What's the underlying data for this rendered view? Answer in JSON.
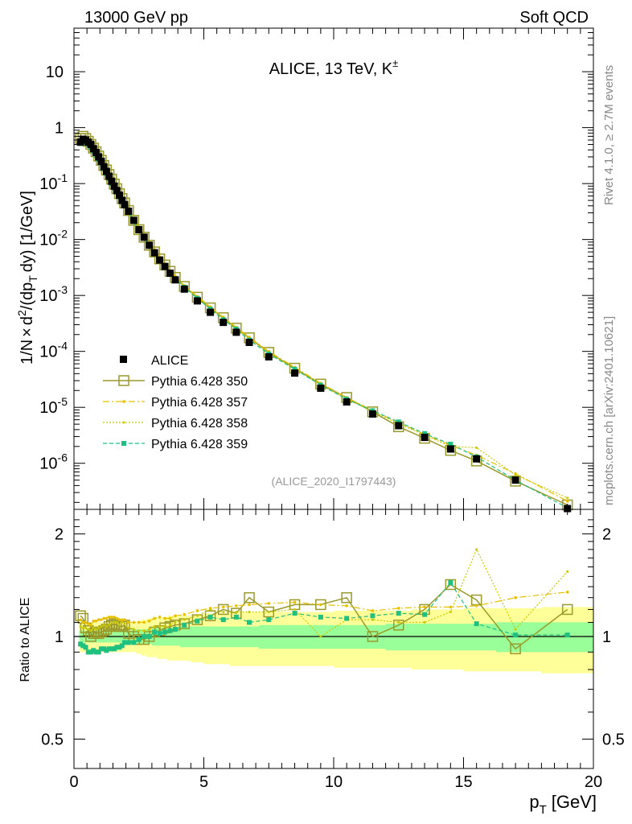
{
  "header": {
    "left": "13000 GeV pp",
    "right": "Soft QCD"
  },
  "side_labels": {
    "rivet": "Rivet 4.1.0, ≥ 2.7M events",
    "mcplots": "mcplots.cern.ch [arXiv:2401.10621]"
  },
  "colors": {
    "alice": "#000000",
    "p350": "#9a9a2a",
    "p357": "#e8c000",
    "p358": "#c8c800",
    "p359": "#20c080",
    "band_yellow": "#ffff99",
    "band_green": "#99ff99"
  },
  "chart_data": [
    {
      "type": "line",
      "title": "ALICE, 13 TeV, K±",
      "title_main": "ALICE, 13 TeV, K",
      "title_sup": "±",
      "ylabel": "1/N × d²/(dp_T dy) [1/GeV]",
      "ylabel_parts": [
        "1/N",
        "×",
        "d",
        "2",
        "/(dp",
        "T",
        "dy) [1/GeV]"
      ],
      "xlim": [
        0,
        20
      ],
      "ylim": [
        1.5e-07,
        60
      ],
      "yscale": "log",
      "yticks": [
        {
          "value": 1e-06,
          "base": "10",
          "exp": "-6"
        },
        {
          "value": 1e-05,
          "base": "10",
          "exp": "-5"
        },
        {
          "value": 0.0001,
          "base": "10",
          "exp": "-4"
        },
        {
          "value": 0.001,
          "base": "10",
          "exp": "-3"
        },
        {
          "value": 0.01,
          "base": "10",
          "exp": "-2"
        },
        {
          "value": 0.1,
          "base": "10",
          "exp": "-1"
        },
        {
          "value": 1,
          "base": "1",
          "exp": ""
        },
        {
          "value": 10,
          "base": "10",
          "exp": ""
        }
      ],
      "watermark": "(ALICE_2020_I1797443)",
      "legend": [
        "ALICE",
        "Pythia 6.428 350",
        "Pythia 6.428 357",
        "Pythia 6.428 358",
        "Pythia 6.428 359"
      ],
      "x": [
        0.25,
        0.35,
        0.45,
        0.55,
        0.65,
        0.75,
        0.85,
        0.95,
        1.05,
        1.15,
        1.25,
        1.35,
        1.45,
        1.55,
        1.65,
        1.75,
        1.85,
        1.95,
        2.1,
        2.3,
        2.5,
        2.7,
        2.9,
        3.1,
        3.3,
        3.5,
        3.7,
        3.9,
        4.25,
        4.75,
        5.25,
        5.75,
        6.25,
        6.75,
        7.5,
        8.5,
        9.5,
        10.5,
        11.5,
        12.5,
        13.5,
        14.5,
        15.5,
        17,
        19
      ],
      "series": [
        {
          "name": "ALICE",
          "values": [
            0.55,
            0.62,
            0.6,
            0.55,
            0.5,
            0.42,
            0.36,
            0.3,
            0.25,
            0.2,
            0.165,
            0.135,
            0.11,
            0.09,
            0.075,
            0.062,
            0.05,
            0.042,
            0.032,
            0.022,
            0.015,
            0.011,
            0.0079,
            0.0058,
            0.0043,
            0.0033,
            0.0025,
            0.0019,
            0.0013,
            0.0008,
            0.0005,
            0.00033,
            0.00022,
            0.000145,
            8e-05,
            4.1e-05,
            2.2e-05,
            1.25e-05,
            7.6e-06,
            4.7e-06,
            2.9e-06,
            1.8e-06,
            1.2e-06,
            5e-07,
            1.55e-07
          ]
        },
        {
          "name": "Pythia 6.428 350",
          "values": [
            0.64,
            0.7,
            0.64,
            0.57,
            0.5,
            0.43,
            0.37,
            0.31,
            0.26,
            0.21,
            0.175,
            0.145,
            0.12,
            0.098,
            0.081,
            0.066,
            0.054,
            0.045,
            0.033,
            0.022,
            0.015,
            0.011,
            0.0079,
            0.006,
            0.0045,
            0.0035,
            0.0027,
            0.0021,
            0.00145,
            0.00093,
            0.0006,
            0.0004,
            0.00026,
            0.000175,
            9.6e-05,
            5e-05,
            2.6e-05,
            1.5e-05,
            8.3e-06,
            4.5e-06,
            2.8e-06,
            1.7e-06,
            1.1e-06,
            4.8e-07,
            1.8e-07
          ]
        },
        {
          "name": "Pythia 6.428 357",
          "values": [
            0.62,
            0.68,
            0.66,
            0.6,
            0.54,
            0.47,
            0.4,
            0.34,
            0.28,
            0.23,
            0.19,
            0.156,
            0.128,
            0.105,
            0.086,
            0.07,
            0.057,
            0.047,
            0.035,
            0.024,
            0.0165,
            0.012,
            0.0088,
            0.0066,
            0.0049,
            0.0037,
            0.0028,
            0.0022,
            0.0015,
            0.00096,
            0.00063,
            0.00041,
            0.00027,
            0.00018,
            0.0001,
            5.2e-05,
            2.7e-05,
            1.5e-05,
            8.8e-06,
            5.3e-06,
            3.3e-06,
            2.1e-06,
            1.4e-06,
            6.5e-07,
            2.1e-07
          ]
        },
        {
          "name": "Pythia 6.428 358",
          "values": [
            0.6,
            0.66,
            0.64,
            0.58,
            0.52,
            0.45,
            0.38,
            0.32,
            0.27,
            0.22,
            0.18,
            0.148,
            0.122,
            0.1,
            0.082,
            0.067,
            0.055,
            0.046,
            0.034,
            0.023,
            0.016,
            0.0115,
            0.0084,
            0.0062,
            0.0046,
            0.0035,
            0.0027,
            0.0021,
            0.00145,
            0.00093,
            0.0006,
            0.00039,
            0.00026,
            0.00017,
            9.4e-05,
            4.9e-05,
            2.5e-05,
            1.4e-05,
            8.5e-06,
            5.1e-06,
            3.2e-06,
            2e-06,
            1.9e-06,
            6.2e-07,
            2.4e-07
          ]
        },
        {
          "name": "Pythia 6.428 359",
          "values": [
            0.52,
            0.58,
            0.55,
            0.5,
            0.45,
            0.38,
            0.32,
            0.27,
            0.23,
            0.185,
            0.15,
            0.124,
            0.1,
            0.083,
            0.07,
            0.058,
            0.048,
            0.04,
            0.031,
            0.021,
            0.0148,
            0.011,
            0.0079,
            0.006,
            0.0044,
            0.0034,
            0.0026,
            0.002,
            0.0014,
            0.00089,
            0.00057,
            0.00037,
            0.00025,
            0.00016,
            9e-05,
            4.8e-05,
            2.5e-05,
            1.4e-05,
            8.7e-06,
            5.5e-06,
            3.4e-06,
            2.2e-06,
            1.3e-06,
            5e-07,
            1.6e-07
          ]
        }
      ]
    },
    {
      "type": "line",
      "title": "",
      "xlabel": "p_T [GeV]",
      "xlabel_parts": [
        "p",
        "T",
        "[GeV]"
      ],
      "ylabel": "Ratio to ALICE",
      "xlim": [
        0,
        20
      ],
      "ylim": [
        0.41,
        2.36
      ],
      "yscale": "log",
      "xticks": [
        0,
        5,
        10,
        15,
        20
      ],
      "yticks": [
        0.5,
        1,
        2
      ],
      "x": [
        0.25,
        0.35,
        0.45,
        0.55,
        0.65,
        0.75,
        0.85,
        0.95,
        1.05,
        1.15,
        1.25,
        1.35,
        1.45,
        1.55,
        1.65,
        1.75,
        1.85,
        1.95,
        2.1,
        2.3,
        2.5,
        2.7,
        2.9,
        3.1,
        3.3,
        3.5,
        3.7,
        3.9,
        4.25,
        4.75,
        5.25,
        5.75,
        6.25,
        6.75,
        7.5,
        8.5,
        9.5,
        10.5,
        11.5,
        12.5,
        13.5,
        14.5,
        15.5,
        17,
        19
      ],
      "band_yellow_half": [
        0.1,
        0.1,
        0.1,
        0.1,
        0.1,
        0.1,
        0.1,
        0.1,
        0.1,
        0.1,
        0.1,
        0.1,
        0.1,
        0.1,
        0.1,
        0.1,
        0.1,
        0.1,
        0.1,
        0.1,
        0.11,
        0.12,
        0.13,
        0.13,
        0.14,
        0.14,
        0.15,
        0.15,
        0.15,
        0.16,
        0.17,
        0.17,
        0.18,
        0.18,
        0.18,
        0.18,
        0.18,
        0.19,
        0.19,
        0.19,
        0.2,
        0.2,
        0.21,
        0.21,
        0.22
      ],
      "band_green_half": [
        0.04,
        0.04,
        0.04,
        0.04,
        0.04,
        0.04,
        0.04,
        0.04,
        0.04,
        0.04,
        0.04,
        0.04,
        0.04,
        0.04,
        0.04,
        0.04,
        0.04,
        0.04,
        0.04,
        0.05,
        0.05,
        0.05,
        0.05,
        0.06,
        0.06,
        0.06,
        0.06,
        0.06,
        0.07,
        0.07,
        0.07,
        0.07,
        0.07,
        0.07,
        0.08,
        0.08,
        0.08,
        0.08,
        0.08,
        0.09,
        0.09,
        0.09,
        0.09,
        0.1,
        0.1
      ],
      "series": [
        {
          "name": "Pythia 6.428 350",
          "values": [
            1.15,
            1.13,
            1.06,
            1.04,
            1.0,
            1.02,
            1.03,
            1.02,
            1.03,
            1.04,
            1.05,
            1.07,
            1.08,
            1.09,
            1.08,
            1.07,
            1.07,
            1.08,
            1.02,
            1.0,
            0.98,
            0.98,
            1.0,
            1.03,
            1.04,
            1.06,
            1.07,
            1.08,
            1.09,
            1.12,
            1.15,
            1.2,
            1.17,
            1.3,
            1.18,
            1.24,
            1.24,
            1.3,
            1.0,
            1.08,
            1.2,
            1.42,
            1.28,
            0.92,
            1.2
          ]
        },
        {
          "name": "Pythia 6.428 357",
          "values": [
            1.12,
            1.1,
            1.1,
            1.09,
            1.08,
            1.11,
            1.11,
            1.12,
            1.12,
            1.13,
            1.13,
            1.14,
            1.14,
            1.14,
            1.13,
            1.12,
            1.12,
            1.12,
            1.1,
            1.1,
            1.1,
            1.1,
            1.11,
            1.13,
            1.14,
            1.13,
            1.13,
            1.15,
            1.16,
            1.19,
            1.21,
            1.22,
            1.23,
            1.24,
            1.25,
            1.26,
            1.24,
            1.23,
            1.19,
            1.21,
            1.22,
            1.22,
            1.23,
            1.3,
            1.35
          ]
        },
        {
          "name": "Pythia 6.428 358",
          "values": [
            1.07,
            1.06,
            1.06,
            1.05,
            1.04,
            1.06,
            1.05,
            1.06,
            1.07,
            1.08,
            1.07,
            1.08,
            1.1,
            1.1,
            1.1,
            1.08,
            1.1,
            1.09,
            1.06,
            1.05,
            1.04,
            1.04,
            1.05,
            1.07,
            1.07,
            1.07,
            1.08,
            1.1,
            1.12,
            1.15,
            1.2,
            1.18,
            1.18,
            1.18,
            1.18,
            1.2,
            1.0,
            1.12,
            1.12,
            1.1,
            1.1,
            1.18,
            1.8,
            1.05,
            1.55
          ]
        },
        {
          "name": "Pythia 6.428 359",
          "values": [
            0.95,
            0.94,
            0.93,
            0.9,
            0.9,
            0.91,
            0.9,
            0.9,
            0.92,
            0.92,
            0.91,
            0.92,
            0.92,
            0.92,
            0.93,
            0.93,
            0.94,
            0.96,
            0.96,
            0.96,
            0.98,
            1.0,
            1.0,
            1.03,
            1.02,
            1.03,
            1.04,
            1.05,
            1.08,
            1.11,
            1.14,
            1.12,
            1.14,
            1.1,
            1.12,
            1.17,
            1.14,
            1.13,
            1.15,
            1.17,
            1.16,
            1.44,
            1.09,
            1.01,
            1.01
          ]
        }
      ]
    }
  ]
}
